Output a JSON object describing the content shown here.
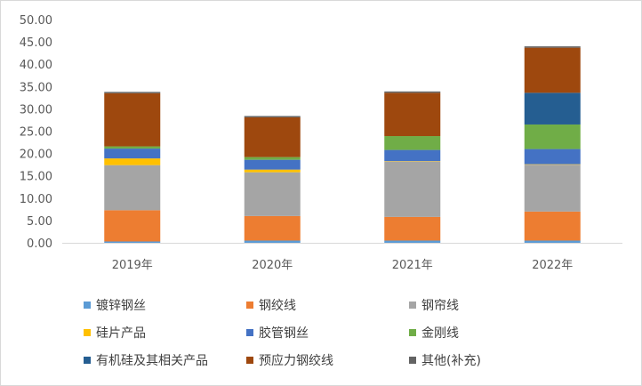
{
  "chart_data": {
    "type": "bar",
    "stacked": true,
    "categories": [
      "2019年",
      "2020年",
      "2021年",
      "2022年"
    ],
    "ylim": [
      0,
      50
    ],
    "yticks": [
      "0.00",
      "5.00",
      "10.00",
      "15.00",
      "20.00",
      "25.00",
      "30.00",
      "35.00",
      "40.00",
      "45.00",
      "50.00"
    ],
    "grid": false,
    "legend_position": "bottom",
    "series": [
      {
        "name": "镀锌钢丝",
        "color": "#5B9BD5",
        "values": [
          0.4,
          0.6,
          0.6,
          0.6
        ]
      },
      {
        "name": "钢绞线",
        "color": "#ED7D31",
        "values": [
          7.0,
          5.5,
          5.3,
          6.5
        ]
      },
      {
        "name": "钢帘线",
        "color": "#A5A5A5",
        "values": [
          10.1,
          9.8,
          12.4,
          10.5
        ]
      },
      {
        "name": "硅片产品",
        "color": "#FFC000",
        "values": [
          1.5,
          0.6,
          0.1,
          0.1
        ]
      },
      {
        "name": "胶管钢丝",
        "color": "#4472C4",
        "values": [
          2.2,
          2.2,
          2.5,
          3.4
        ]
      },
      {
        "name": "金刚线",
        "color": "#70AD47",
        "values": [
          0.5,
          0.6,
          3.1,
          5.5
        ]
      },
      {
        "name": "有机硅及其相关产品",
        "color": "#255E91",
        "values": [
          0.0,
          0.0,
          0.0,
          7.1
        ]
      },
      {
        "name": "预应力钢绞线",
        "color": "#9E480E",
        "values": [
          11.9,
          8.9,
          9.7,
          10.1
        ]
      },
      {
        "name": "其他(补充)",
        "color": "#636363",
        "values": [
          0.3,
          0.3,
          0.3,
          0.3
        ]
      }
    ]
  }
}
